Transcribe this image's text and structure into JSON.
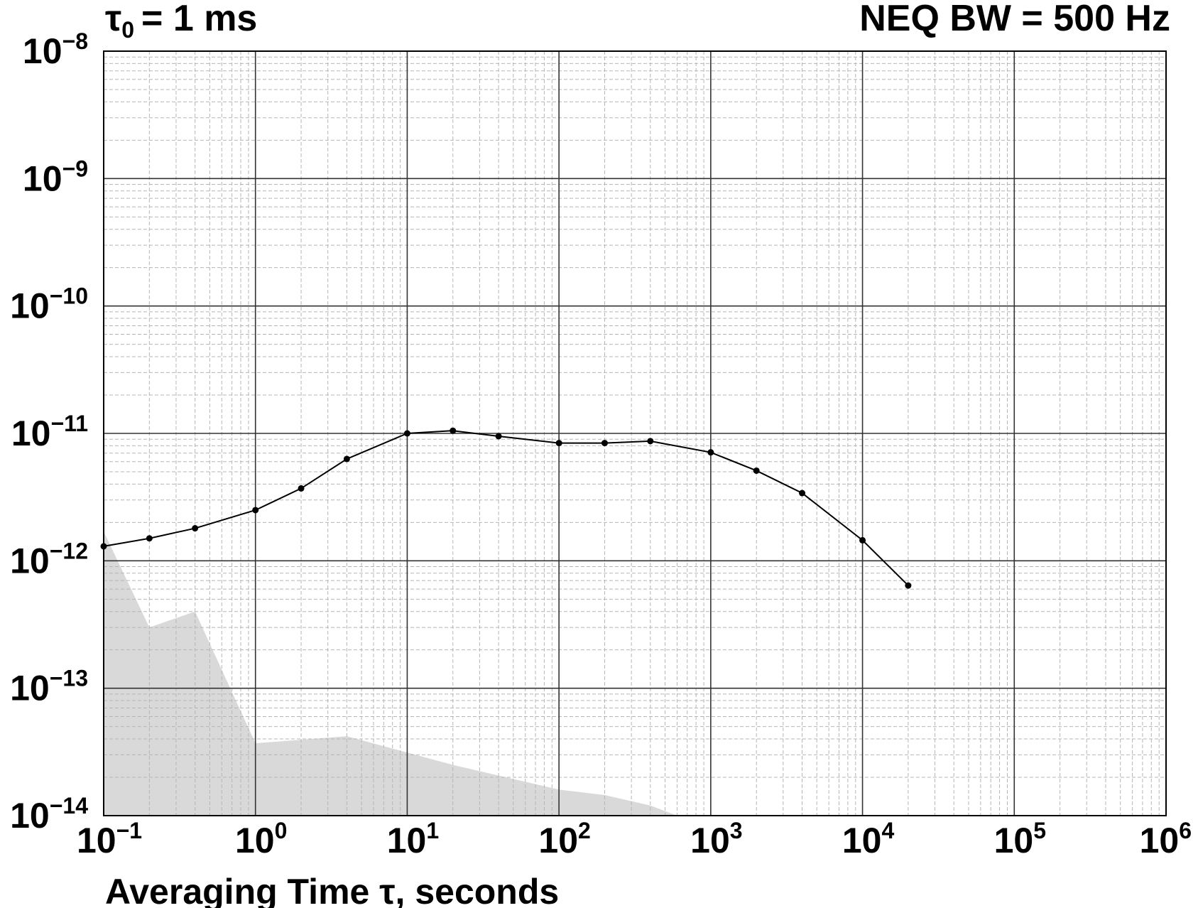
{
  "chart_data": {
    "type": "line",
    "scale": {
      "x": "log",
      "y": "log"
    },
    "xlim": [
      0.1,
      1000000
    ],
    "ylim": [
      1e-14,
      1e-08
    ],
    "grid": true,
    "title_left": {
      "symbol": "τ",
      "subscript": "0",
      "text": "= 1 ms"
    },
    "title_right": "NEQ BW = 500 Hz",
    "xlabel": "Averaging Time τ, seconds",
    "ylabel": "",
    "x_ticks": [
      {
        "base": "10",
        "exp": "−1",
        "value": 0.1
      },
      {
        "base": "10",
        "exp": "0",
        "value": 1
      },
      {
        "base": "10",
        "exp": "1",
        "value": 10
      },
      {
        "base": "10",
        "exp": "2",
        "value": 100
      },
      {
        "base": "10",
        "exp": "3",
        "value": 1000
      },
      {
        "base": "10",
        "exp": "4",
        "value": 10000
      },
      {
        "base": "10",
        "exp": "5",
        "value": 100000
      },
      {
        "base": "10",
        "exp": "6",
        "value": 1000000
      }
    ],
    "y_ticks": [
      {
        "base": "10",
        "exp": "−8",
        "value": 1e-08
      },
      {
        "base": "10",
        "exp": "−9",
        "value": 1e-09
      },
      {
        "base": "10",
        "exp": "−10",
        "value": 1e-10
      },
      {
        "base": "10",
        "exp": "−11",
        "value": 1e-11
      },
      {
        "base": "10",
        "exp": "−12",
        "value": 1e-12
      },
      {
        "base": "10",
        "exp": "−13",
        "value": 1e-13
      },
      {
        "base": "10",
        "exp": "−14",
        "value": 1e-14
      }
    ],
    "series": [
      {
        "style": "line-with-markers",
        "color": "#000000",
        "x": [
          0.1,
          0.2,
          0.4,
          1,
          2,
          4,
          10,
          20,
          40,
          100,
          200,
          400,
          1000,
          2000,
          4000,
          10000,
          20000
        ],
        "y": [
          1.3e-12,
          1.5e-12,
          1.8e-12,
          2.5e-12,
          3.7e-12,
          6.3e-12,
          1e-11,
          1.05e-11,
          9.5e-12,
          8.4e-12,
          8.4e-12,
          8.7e-12,
          7.1e-12,
          5.1e-12,
          3.4e-12,
          1.45e-12,
          6.4e-13
        ]
      },
      {
        "style": "filled-area",
        "color": "#d9d9d9",
        "x": [
          0.1,
          0.2,
          0.4,
          1,
          4,
          20,
          100,
          200,
          400,
          600
        ],
        "y": [
          1.7e-12,
          3e-13,
          4e-13,
          3.7e-14,
          4.2e-14,
          2.5e-14,
          1.6e-14,
          1.45e-14,
          1.2e-14,
          1e-14
        ]
      }
    ]
  }
}
